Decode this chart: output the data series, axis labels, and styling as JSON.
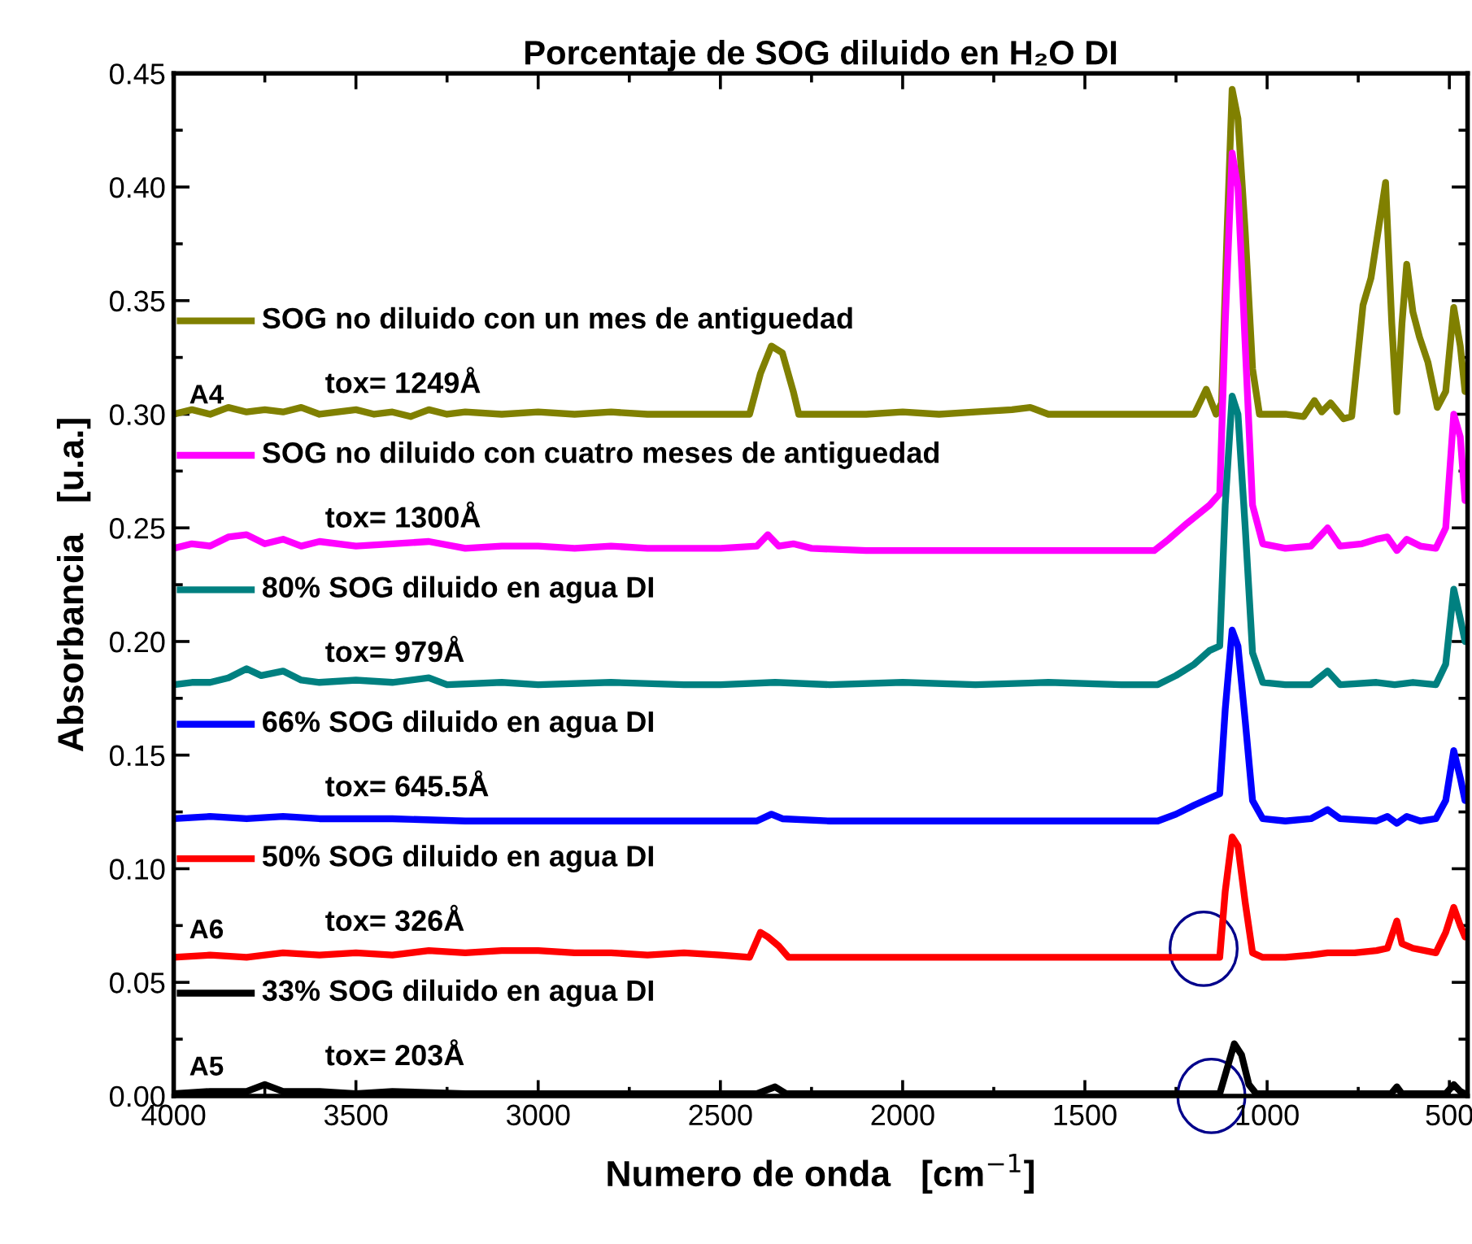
{
  "chart_data": {
    "type": "line",
    "title": "Porcentaje de SOG diluido en H₂O DI",
    "xlabel": "Numero de onda   [cm$^{−1}$]",
    "ylabel": "Absorbancia   [u.a.]",
    "xlim": [
      4000,
      450
    ],
    "xticks": [
      4000,
      3500,
      3000,
      2500,
      2000,
      1500,
      1000,
      500
    ],
    "ylim": [
      0,
      0.45
    ],
    "yticks": [
      {
        "value": 0,
        "label": "0.00"
      },
      {
        "value": 0.05,
        "label": "0.05"
      },
      {
        "value": 0.1,
        "label": "0.10"
      },
      {
        "value": 0.15,
        "label": "0.15"
      },
      {
        "value": 0.2,
        "label": "0.20"
      },
      {
        "value": 0.25,
        "label": "0.25"
      },
      {
        "value": 0.3,
        "label": "0.30"
      },
      {
        "value": 0.35,
        "label": "0.35"
      },
      {
        "value": 0.4,
        "label": "0.40"
      },
      {
        "value": 0.45,
        "label": "0.45"
      }
    ],
    "grid": false,
    "legend": "left",
    "marker": "none",
    "line_style": "solid",
    "annotations": [
      "tox= 1249Å",
      "tox= 1300Å",
      "tox= 979Å",
      "tox= 645.5Å",
      "tox= 326Å",
      "tox= 203Å",
      "A4",
      "A6",
      "A5"
    ],
    "series": [
      {
        "name": "SOG no diluido con un mes de antiguedad",
        "color": "#808000",
        "x": [
          4000,
          3950,
          3900,
          3850,
          3800,
          3750,
          3700,
          3650,
          3600,
          3550,
          3500,
          3450,
          3400,
          3350,
          3300,
          3250,
          3200,
          3100,
          3000,
          2900,
          2800,
          2700,
          2600,
          2500,
          2420,
          2390,
          2360,
          2330,
          2300,
          2285,
          2200,
          2100,
          2000,
          1900,
          1800,
          1700,
          1650,
          1600,
          1500,
          1400,
          1300,
          1200,
          1167,
          1140,
          1125,
          1110,
          1096,
          1080,
          1060,
          1040,
          1021,
          950,
          900,
          870,
          850,
          826,
          790,
          768,
          737,
          715,
          675,
          658,
          644,
          630,
          617,
          600,
          582,
          559,
          533,
          510,
          488,
          470,
          457
        ],
        "values": [
          0.3,
          0.302,
          0.3,
          0.303,
          0.301,
          0.302,
          0.301,
          0.303,
          0.3,
          0.301,
          0.302,
          0.3,
          0.301,
          0.299,
          0.302,
          0.3,
          0.301,
          0.3,
          0.301,
          0.3,
          0.301,
          0.3,
          0.3,
          0.3,
          0.3,
          0.318,
          0.33,
          0.327,
          0.31,
          0.3,
          0.3,
          0.3,
          0.301,
          0.3,
          0.301,
          0.302,
          0.303,
          0.3,
          0.3,
          0.3,
          0.3,
          0.3,
          0.311,
          0.3,
          0.305,
          0.38,
          0.443,
          0.43,
          0.38,
          0.32,
          0.3,
          0.3,
          0.299,
          0.306,
          0.301,
          0.305,
          0.298,
          0.299,
          0.348,
          0.36,
          0.402,
          0.34,
          0.301,
          0.34,
          0.366,
          0.345,
          0.334,
          0.323,
          0.303,
          0.31,
          0.347,
          0.33,
          0.31
        ]
      },
      {
        "name": "SOG no diluido con cuatro meses de antiguedad",
        "color": "#ff00ff",
        "x": [
          4000,
          3950,
          3900,
          3850,
          3800,
          3750,
          3700,
          3650,
          3600,
          3500,
          3400,
          3300,
          3200,
          3100,
          3000,
          2900,
          2800,
          2700,
          2600,
          2500,
          2400,
          2370,
          2340,
          2300,
          2250,
          2100,
          2000,
          1800,
          1600,
          1400,
          1310,
          1270,
          1220,
          1158,
          1130,
          1115,
          1096,
          1080,
          1060,
          1040,
          1012,
          950,
          880,
          834,
          800,
          740,
          700,
          670,
          644,
          617,
          580,
          537,
          510,
          488,
          470,
          457
        ],
        "values": [
          0.241,
          0.243,
          0.242,
          0.246,
          0.247,
          0.243,
          0.245,
          0.242,
          0.244,
          0.242,
          0.243,
          0.244,
          0.241,
          0.242,
          0.242,
          0.241,
          0.242,
          0.241,
          0.241,
          0.241,
          0.242,
          0.247,
          0.242,
          0.243,
          0.241,
          0.24,
          0.24,
          0.24,
          0.24,
          0.24,
          0.24,
          0.245,
          0.252,
          0.26,
          0.265,
          0.34,
          0.415,
          0.4,
          0.33,
          0.26,
          0.243,
          0.241,
          0.242,
          0.25,
          0.242,
          0.243,
          0.245,
          0.246,
          0.24,
          0.245,
          0.242,
          0.241,
          0.25,
          0.3,
          0.29,
          0.262
        ]
      },
      {
        "name": "80% SOG diluido en agua DI",
        "color": "#008080",
        "x": [
          4000,
          3950,
          3900,
          3850,
          3800,
          3760,
          3700,
          3650,
          3600,
          3500,
          3400,
          3300,
          3250,
          3100,
          3000,
          2800,
          2600,
          2500,
          2350,
          2200,
          2000,
          1800,
          1600,
          1400,
          1300,
          1250,
          1200,
          1158,
          1130,
          1115,
          1096,
          1080,
          1060,
          1040,
          1012,
          950,
          880,
          834,
          800,
          700,
          650,
          600,
          537,
          510,
          488,
          470,
          457
        ],
        "values": [
          0.181,
          0.182,
          0.182,
          0.184,
          0.188,
          0.185,
          0.187,
          0.183,
          0.182,
          0.183,
          0.182,
          0.184,
          0.181,
          0.182,
          0.181,
          0.182,
          0.181,
          0.181,
          0.182,
          0.181,
          0.182,
          0.181,
          0.182,
          0.181,
          0.181,
          0.185,
          0.19,
          0.196,
          0.198,
          0.26,
          0.308,
          0.3,
          0.25,
          0.195,
          0.182,
          0.181,
          0.181,
          0.187,
          0.181,
          0.182,
          0.181,
          0.182,
          0.181,
          0.19,
          0.223,
          0.21,
          0.2
        ]
      },
      {
        "name": "66% SOG diluido en agua DI",
        "color": "#0000ff",
        "x": [
          4000,
          3900,
          3800,
          3700,
          3600,
          3400,
          3200,
          3000,
          2800,
          2600,
          2400,
          2360,
          2330,
          2200,
          2000,
          1800,
          1600,
          1400,
          1300,
          1250,
          1200,
          1158,
          1130,
          1115,
          1096,
          1080,
          1060,
          1040,
          1012,
          950,
          880,
          834,
          800,
          700,
          670,
          644,
          617,
          580,
          537,
          510,
          488,
          470,
          457
        ],
        "values": [
          0.122,
          0.123,
          0.122,
          0.123,
          0.122,
          0.122,
          0.121,
          0.121,
          0.121,
          0.121,
          0.121,
          0.124,
          0.122,
          0.121,
          0.121,
          0.121,
          0.121,
          0.121,
          0.121,
          0.124,
          0.128,
          0.131,
          0.133,
          0.17,
          0.205,
          0.198,
          0.165,
          0.13,
          0.122,
          0.121,
          0.122,
          0.126,
          0.122,
          0.121,
          0.123,
          0.12,
          0.123,
          0.121,
          0.122,
          0.13,
          0.152,
          0.14,
          0.13
        ]
      },
      {
        "name": "50% SOG diluido en agua DI",
        "color": "#ff0000",
        "x": [
          4000,
          3900,
          3800,
          3700,
          3600,
          3500,
          3400,
          3300,
          3200,
          3100,
          3000,
          2900,
          2800,
          2700,
          2600,
          2500,
          2420,
          2390,
          2370,
          2340,
          2313,
          2200,
          2000,
          1800,
          1600,
          1400,
          1200,
          1130,
          1115,
          1096,
          1080,
          1060,
          1040,
          1012,
          950,
          880,
          834,
          760,
          700,
          670,
          644,
          630,
          600,
          537,
          510,
          488,
          470,
          457
        ],
        "values": [
          0.061,
          0.062,
          0.061,
          0.063,
          0.062,
          0.063,
          0.062,
          0.064,
          0.063,
          0.064,
          0.064,
          0.063,
          0.063,
          0.062,
          0.063,
          0.062,
          0.061,
          0.072,
          0.07,
          0.066,
          0.061,
          0.061,
          0.061,
          0.061,
          0.061,
          0.061,
          0.061,
          0.061,
          0.09,
          0.114,
          0.11,
          0.085,
          0.063,
          0.061,
          0.061,
          0.062,
          0.063,
          0.063,
          0.064,
          0.065,
          0.077,
          0.067,
          0.065,
          0.063,
          0.072,
          0.083,
          0.075,
          0.07
        ]
      },
      {
        "name": "33% SOG diluido en agua DI",
        "color": "#000000",
        "x": [
          4000,
          3900,
          3800,
          3750,
          3700,
          3600,
          3500,
          3400,
          3200,
          3000,
          2800,
          2600,
          2400,
          2350,
          2320,
          2200,
          2000,
          1800,
          1600,
          1400,
          1200,
          1130,
          1110,
          1090,
          1070,
          1050,
          1030,
          900,
          800,
          700,
          660,
          644,
          630,
          540,
          510,
          488,
          470,
          457
        ],
        "values": [
          0.001,
          0.002,
          0.002,
          0.005,
          0.002,
          0.002,
          0.001,
          0.002,
          0.001,
          0.001,
          0.001,
          0.001,
          0.001,
          0.004,
          0.001,
          0.001,
          0.001,
          0.001,
          0.001,
          0.001,
          0.001,
          0.001,
          0.012,
          0.023,
          0.018,
          0.005,
          0.001,
          0.001,
          0.001,
          0.001,
          0.001,
          0.004,
          0.001,
          0.001,
          0.001,
          0.005,
          0.002,
          0.001
        ]
      }
    ]
  }
}
